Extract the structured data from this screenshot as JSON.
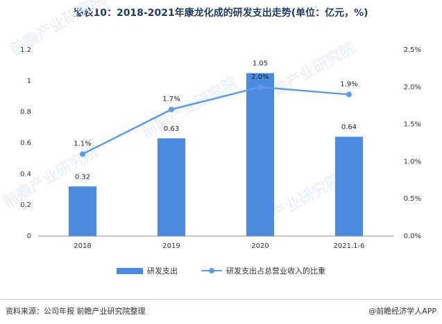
{
  "title": "图表10：2018-2021年康龙化成的研发支出走势(单位：亿元，%)",
  "footer": {
    "source": "资料来源：公司年报 前瞻产业研究院整理",
    "brand": "@前瞻经济学人APP"
  },
  "colors": {
    "bar": "#4a8be0",
    "line": "#5b9bea",
    "axis": "#888888",
    "title": "#1f3b5e"
  },
  "watermark": "前瞻产业研究院",
  "chart_data": {
    "type": "bar+line",
    "categories": [
      "2018",
      "2019",
      "2020",
      "2021.1-6"
    ],
    "series": [
      {
        "name": "研发支出",
        "type": "bar",
        "axis": "left",
        "values": [
          0.32,
          0.63,
          1.05,
          0.64
        ],
        "labels": [
          "0.32",
          "0.63",
          "1.05",
          "0.64"
        ]
      },
      {
        "name": "研发支出占总营业收入的比重",
        "type": "line",
        "axis": "right",
        "values": [
          1.1,
          1.7,
          2.0,
          1.9
        ],
        "labels": [
          "1.1%",
          "1.7%",
          "2.0%",
          "1.9%"
        ]
      }
    ],
    "left_axis": {
      "ylim": [
        0,
        1.2
      ],
      "ticks": [
        0,
        0.2,
        0.4,
        0.6,
        0.8,
        1,
        1.2
      ],
      "tick_labels": [
        "0",
        "0.2",
        "0.4",
        "0.6",
        "0.8",
        "1",
        "1.2"
      ]
    },
    "right_axis": {
      "ylim": [
        0,
        2.5
      ],
      "ticks": [
        0,
        0.5,
        1.0,
        1.5,
        2.0,
        2.5
      ],
      "tick_labels": [
        "0.0%",
        "0.5%",
        "1.0%",
        "1.5%",
        "2.0%",
        "2.5%"
      ]
    },
    "grid": false,
    "legend_position": "bottom"
  }
}
